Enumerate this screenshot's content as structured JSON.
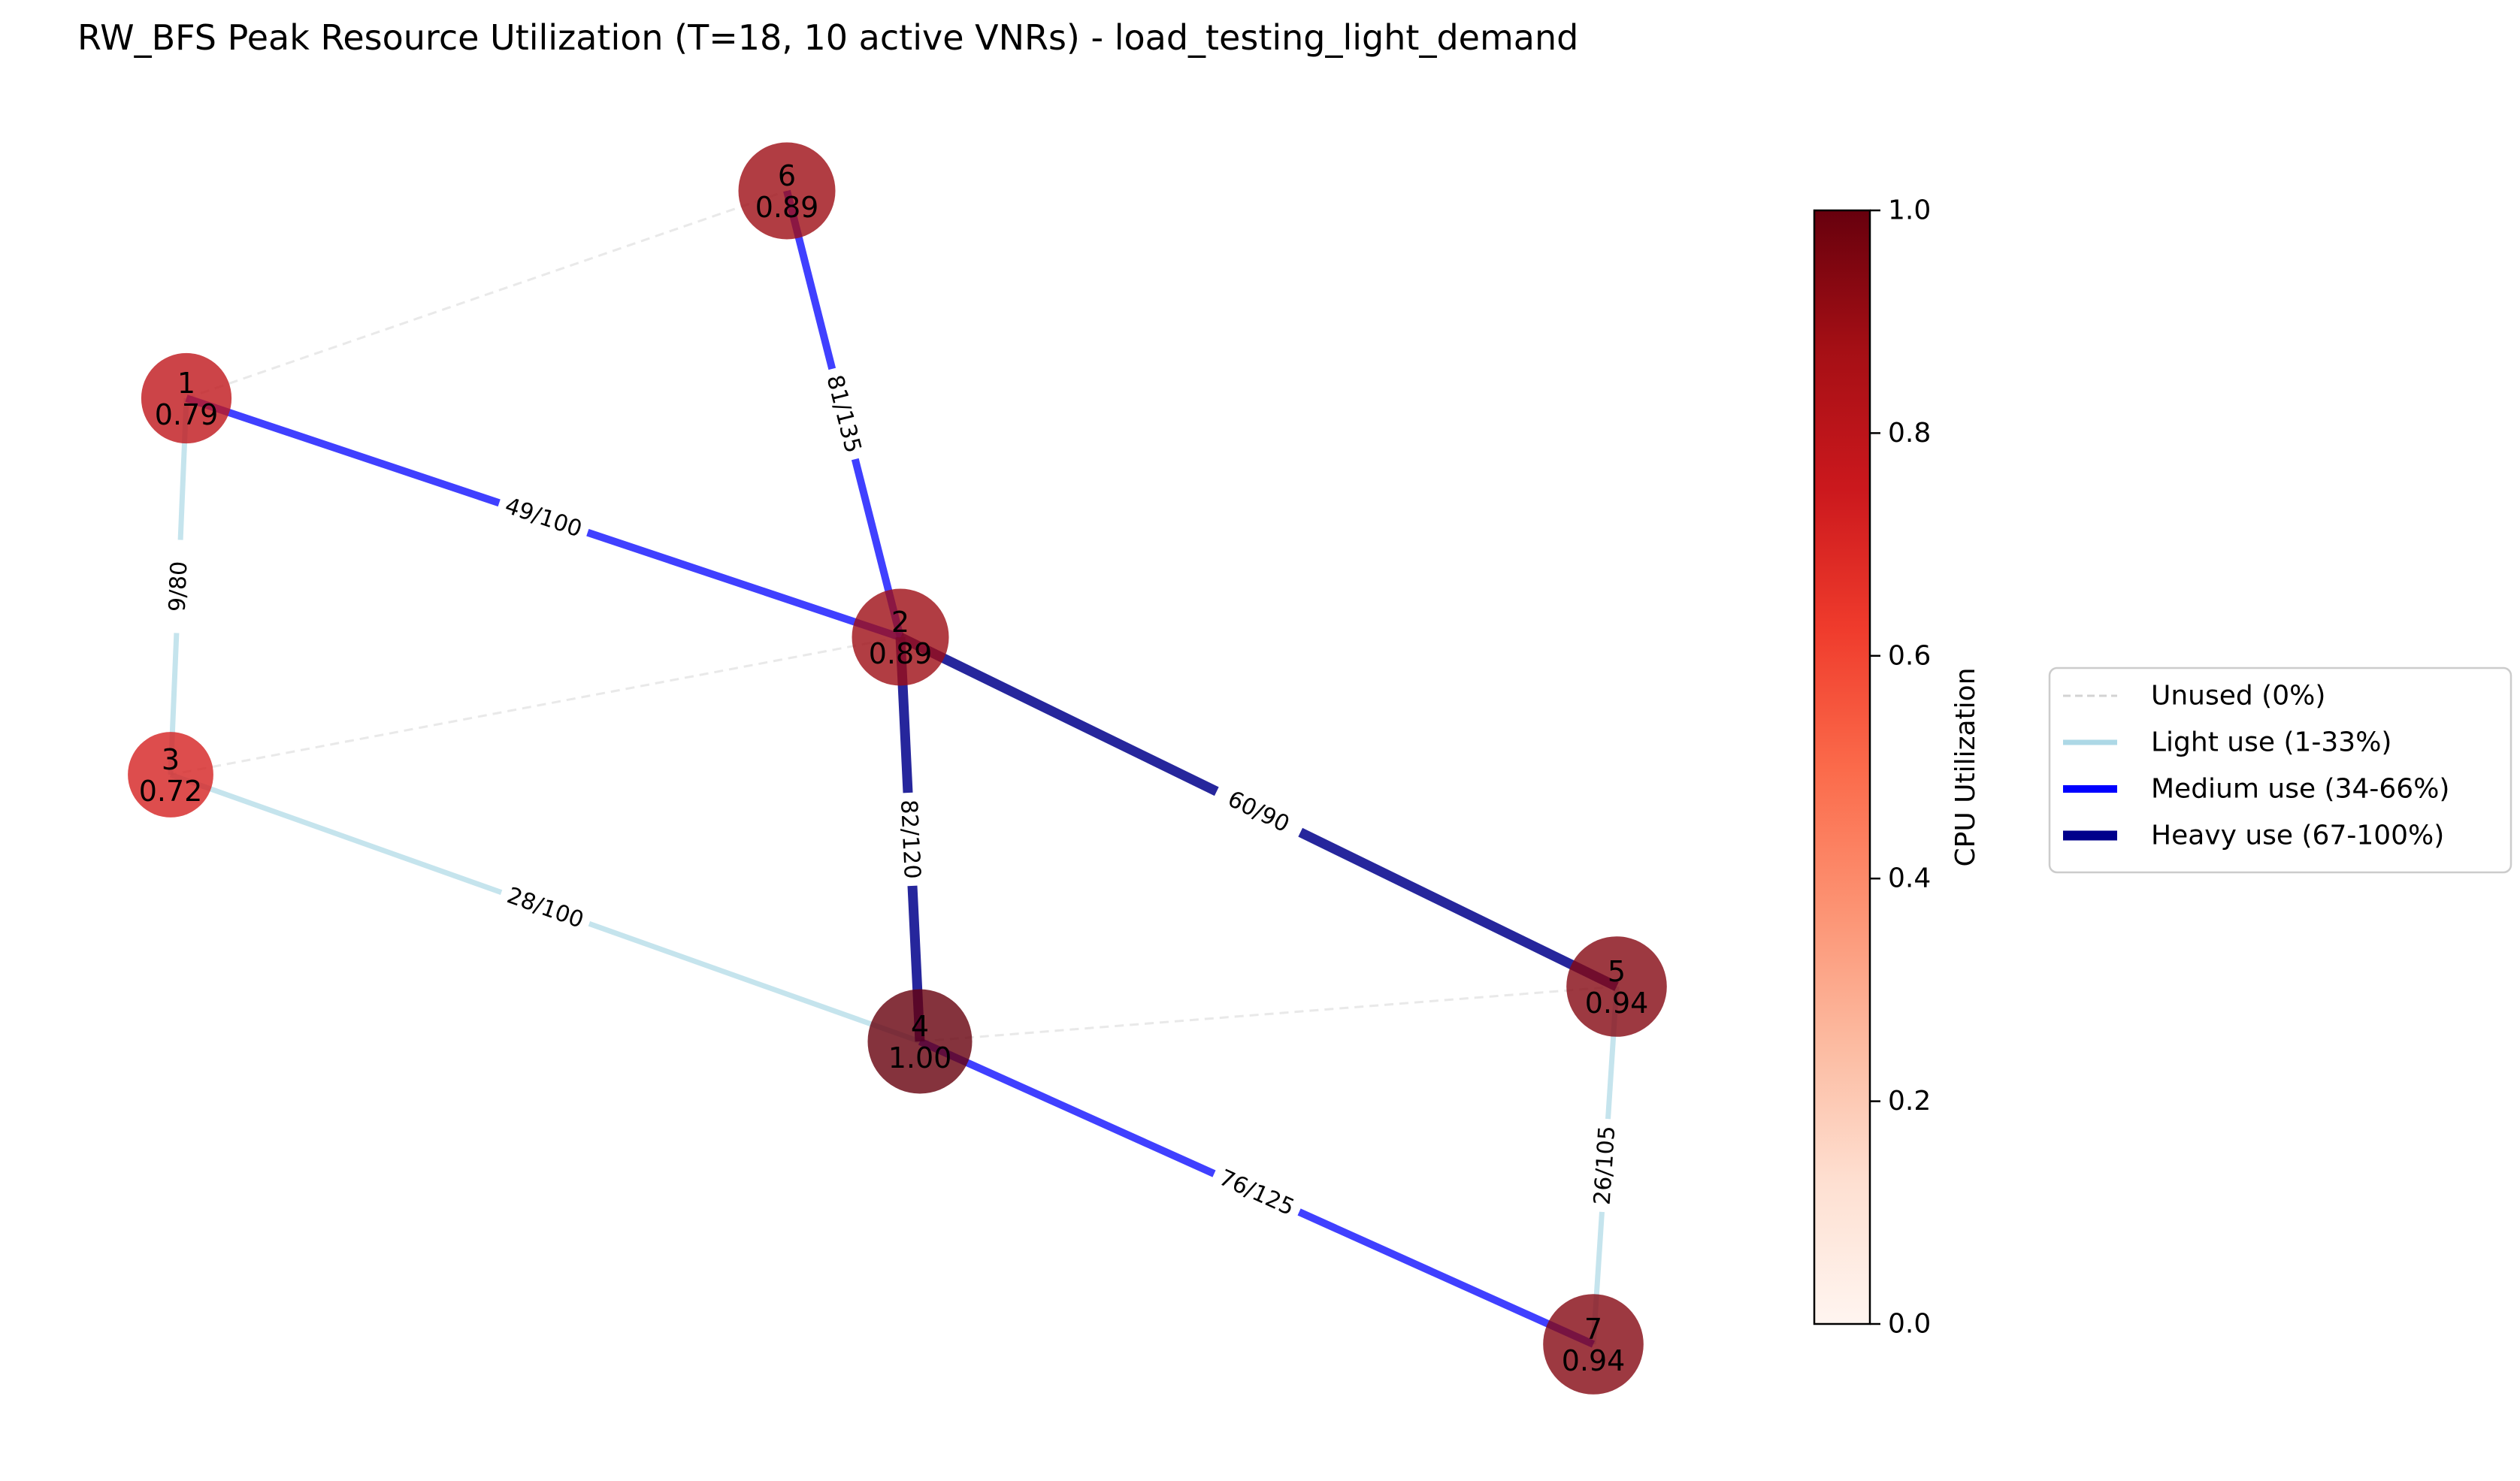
{
  "title": "RW_BFS Peak Resource Utilization (T=18, 10 active VNRs) - load_testing_light_demand",
  "colors": {
    "unused": "#d3d3d3",
    "light": "#add8e6",
    "medium": "#0000ff",
    "heavy": "#00008b",
    "cmap_low": "#fff5f0",
    "cmap_high": "#67000d"
  },
  "graph": {
    "nodes": [
      {
        "id": "1",
        "cpu": "0.79",
        "value": 0.79
      },
      {
        "id": "2",
        "cpu": "0.89",
        "value": 0.89
      },
      {
        "id": "3",
        "cpu": "0.72",
        "value": 0.72
      },
      {
        "id": "4",
        "cpu": "1.00",
        "value": 1.0
      },
      {
        "id": "5",
        "cpu": "0.94",
        "value": 0.94
      },
      {
        "id": "6",
        "cpu": "0.89",
        "value": 0.89
      },
      {
        "id": "7",
        "cpu": "0.94",
        "value": 0.94
      }
    ],
    "edges": [
      {
        "source": "1",
        "target": "6",
        "usage": "unused",
        "label": ""
      },
      {
        "source": "2",
        "target": "3",
        "usage": "unused",
        "label": ""
      },
      {
        "source": "4",
        "target": "5",
        "usage": "unused",
        "label": ""
      },
      {
        "source": "1",
        "target": "3",
        "usage": "light",
        "label": "9/80"
      },
      {
        "source": "3",
        "target": "4",
        "usage": "light",
        "label": "28/100"
      },
      {
        "source": "5",
        "target": "7",
        "usage": "light",
        "label": "26/105"
      },
      {
        "source": "1",
        "target": "2",
        "usage": "medium",
        "label": "49/100"
      },
      {
        "source": "2",
        "target": "6",
        "usage": "medium",
        "label": "81/135"
      },
      {
        "source": "4",
        "target": "7",
        "usage": "medium",
        "label": "76/125"
      },
      {
        "source": "2",
        "target": "4",
        "usage": "heavy",
        "label": "82/120"
      },
      {
        "source": "2",
        "target": "5",
        "usage": "heavy",
        "label": "60/90"
      }
    ]
  },
  "colorbar": {
    "label": "CPU Utilization",
    "ticks": [
      "0.0",
      "0.2",
      "0.4",
      "0.6",
      "0.8",
      "1.0"
    ],
    "range": [
      0,
      1
    ]
  },
  "legend": {
    "items": [
      {
        "usage": "unused",
        "label": "Unused (0%)"
      },
      {
        "usage": "light",
        "label": "Light use (1-33%)"
      },
      {
        "usage": "medium",
        "label": "Medium use (34-66%)"
      },
      {
        "usage": "heavy",
        "label": "Heavy use (67-100%)"
      }
    ]
  }
}
